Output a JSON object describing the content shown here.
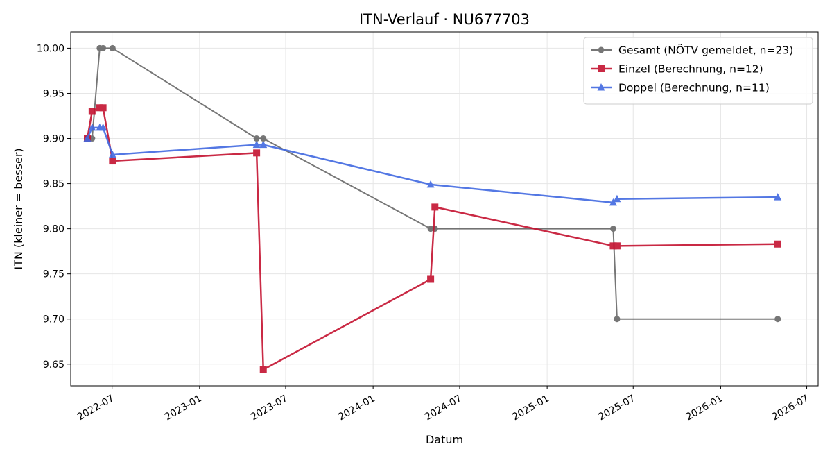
{
  "chart_data": {
    "type": "line",
    "title": "ITN-Verlauf · NU677703",
    "xlabel": "Datum",
    "ylabel": "ITN  (kleiner = besser)",
    "x_axis_type": "date",
    "xlim": [
      "2022-04-05",
      "2026-07-25"
    ],
    "ylim": [
      9.626,
      10.018
    ],
    "x_ticks": [
      "2022-07-01",
      "2023-01-01",
      "2023-07-01",
      "2024-01-01",
      "2024-07-01",
      "2025-01-01",
      "2025-07-01",
      "2026-01-01",
      "2026-07-01"
    ],
    "x_tick_labels": [
      "2022-07",
      "2023-01",
      "2023-07",
      "2024-01",
      "2024-07",
      "2025-01",
      "2025-07",
      "2026-01",
      "2026-07"
    ],
    "y_ticks": [
      9.65,
      9.7,
      9.75,
      9.8,
      9.85,
      9.9,
      9.95,
      10.0
    ],
    "y_tick_labels": [
      "9.65",
      "9.70",
      "9.75",
      "9.80",
      "9.85",
      "9.90",
      "9.95",
      "10.00"
    ],
    "grid": true,
    "legend_position": "top-right",
    "series": [
      {
        "name": "Gesamt (NÖTV gemeldet, n=23)",
        "color": "#555555",
        "opacity": 0.8,
        "marker": "circle",
        "line_width": 2,
        "points": [
          {
            "x": "2022-05-10",
            "y": 9.9
          },
          {
            "x": "2022-05-20",
            "y": 9.9
          },
          {
            "x": "2022-06-05",
            "y": 10.0
          },
          {
            "x": "2022-06-12",
            "y": 10.0
          },
          {
            "x": "2022-07-02",
            "y": 10.0
          },
          {
            "x": "2023-05-01",
            "y": 9.9
          },
          {
            "x": "2023-05-15",
            "y": 9.9
          },
          {
            "x": "2024-05-01",
            "y": 9.8
          },
          {
            "x": "2024-05-10",
            "y": 9.8
          },
          {
            "x": "2025-05-20",
            "y": 9.8
          },
          {
            "x": "2025-05-28",
            "y": 9.7
          },
          {
            "x": "2026-05-01",
            "y": 9.7
          }
        ]
      },
      {
        "name": "Einzel (Berechnung, n=12)",
        "color": "#c41230",
        "opacity": 0.9,
        "marker": "square",
        "line_width": 2.5,
        "points": [
          {
            "x": "2022-05-10",
            "y": 9.9
          },
          {
            "x": "2022-05-20",
            "y": 9.93
          },
          {
            "x": "2022-06-05",
            "y": 9.934
          },
          {
            "x": "2022-06-12",
            "y": 9.934
          },
          {
            "x": "2022-07-02",
            "y": 9.875
          },
          {
            "x": "2023-05-01",
            "y": 9.884
          },
          {
            "x": "2023-05-15",
            "y": 9.644
          },
          {
            "x": "2024-05-01",
            "y": 9.744
          },
          {
            "x": "2024-05-10",
            "y": 9.824
          },
          {
            "x": "2025-05-20",
            "y": 9.781
          },
          {
            "x": "2025-05-28",
            "y": 9.781
          },
          {
            "x": "2026-05-01",
            "y": 9.783
          }
        ]
      },
      {
        "name": "Doppel (Berechnung, n=11)",
        "color": "#4169e1",
        "opacity": 0.9,
        "marker": "triangle",
        "line_width": 2.5,
        "points": [
          {
            "x": "2022-05-10",
            "y": 9.9
          },
          {
            "x": "2022-05-20",
            "y": 9.912
          },
          {
            "x": "2022-06-05",
            "y": 9.912
          },
          {
            "x": "2022-06-12",
            "y": 9.912
          },
          {
            "x": "2022-07-02",
            "y": 9.882
          },
          {
            "x": "2023-05-01",
            "y": 9.893
          },
          {
            "x": "2023-05-15",
            "y": 9.893
          },
          {
            "x": "2024-05-01",
            "y": 9.849
          },
          {
            "x": "2025-05-20",
            "y": 9.829
          },
          {
            "x": "2025-05-28",
            "y": 9.833
          },
          {
            "x": "2026-05-01",
            "y": 9.835
          }
        ]
      }
    ]
  }
}
